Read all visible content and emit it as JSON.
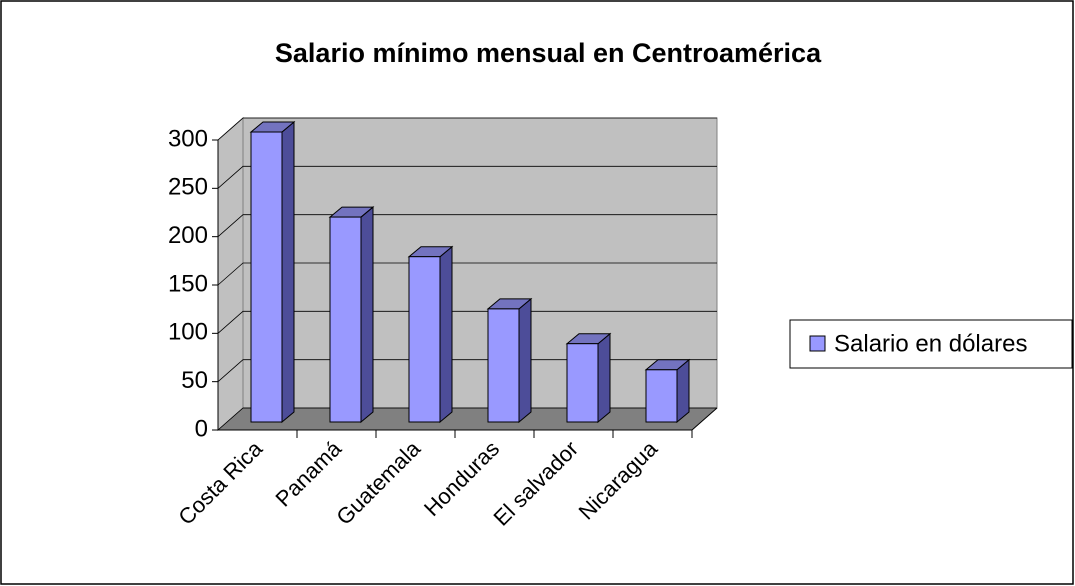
{
  "chart_data": {
    "type": "bar3d",
    "title": "Salario mínimo mensual en Centroamérica",
    "categories": [
      "Costa Rica",
      "Panamá",
      "Guatemala",
      "Honduras",
      "El salvador",
      "Nicaragua"
    ],
    "series": [
      {
        "name": "Salario en dólares",
        "color": "#9999ff",
        "values": [
          300,
          212,
          171,
          117,
          81,
          54
        ]
      }
    ],
    "ylim": [
      0,
      300
    ],
    "yticks": [
      0,
      50,
      100,
      150,
      200,
      250,
      300
    ],
    "grid": true,
    "legend": "right"
  }
}
